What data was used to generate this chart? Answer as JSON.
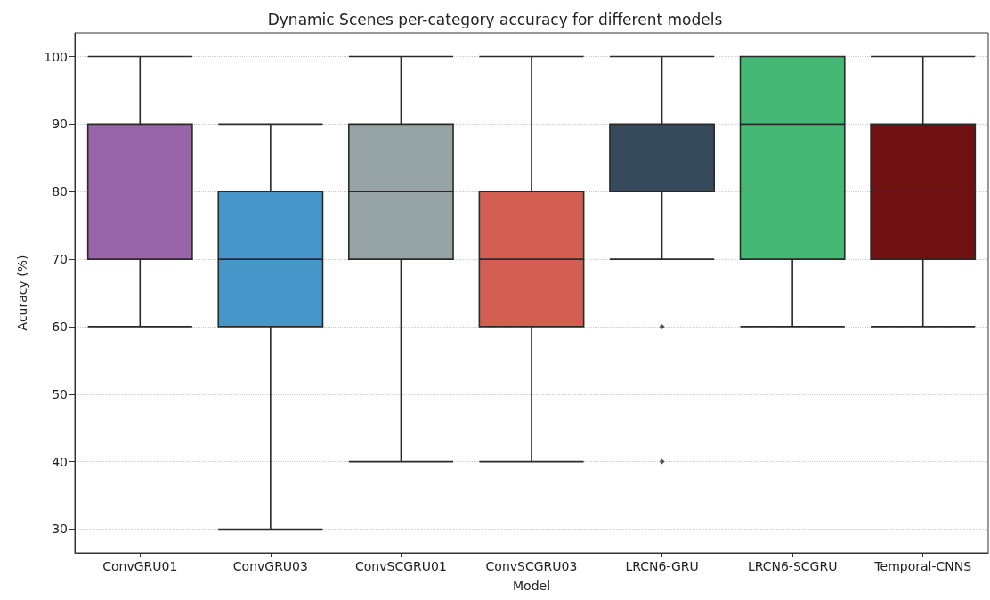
{
  "chart_data": {
    "type": "box",
    "title": "Dynamic Scenes per-category accuracy for different models",
    "xlabel": "Model",
    "ylabel": "Acuracy (%)",
    "categories": [
      "ConvGRU01",
      "ConvGRU03",
      "ConvSCGRU01",
      "ConvSCGRU03",
      "LRCN6-GRU",
      "LRCN6-SCGRU",
      "Temporal-CNNS"
    ],
    "boxes": [
      {
        "low": 60,
        "q1": 70,
        "median": 90,
        "q3": 90,
        "high": 100
      },
      {
        "low": 30,
        "q1": 60,
        "median": 70,
        "q3": 80,
        "high": 90
      },
      {
        "low": 40,
        "q1": 70,
        "median": 80,
        "q3": 90,
        "high": 100
      },
      {
        "low": 40,
        "q1": 60,
        "median": 70,
        "q3": 80,
        "high": 100
      },
      {
        "low": 70,
        "q1": 80,
        "median": 90,
        "q3": 90,
        "high": 100,
        "outliers": [
          60,
          40
        ]
      },
      {
        "low": 60,
        "q1": 70,
        "median": 90,
        "q3": 100,
        "high": 100
      },
      {
        "low": 60,
        "q1": 70,
        "median": 80,
        "q3": 90,
        "high": 100
      }
    ],
    "colors": [
      "#9866a8",
      "#4796c9",
      "#97a4a5",
      "#d35f52",
      "#374a5c",
      "#44b874",
      "#701010"
    ],
    "ylim": [
      26.5,
      103.5
    ],
    "yticks": [
      30,
      40,
      50,
      60,
      70,
      80,
      90,
      100
    ],
    "grid": "y",
    "marker": "diamond"
  }
}
